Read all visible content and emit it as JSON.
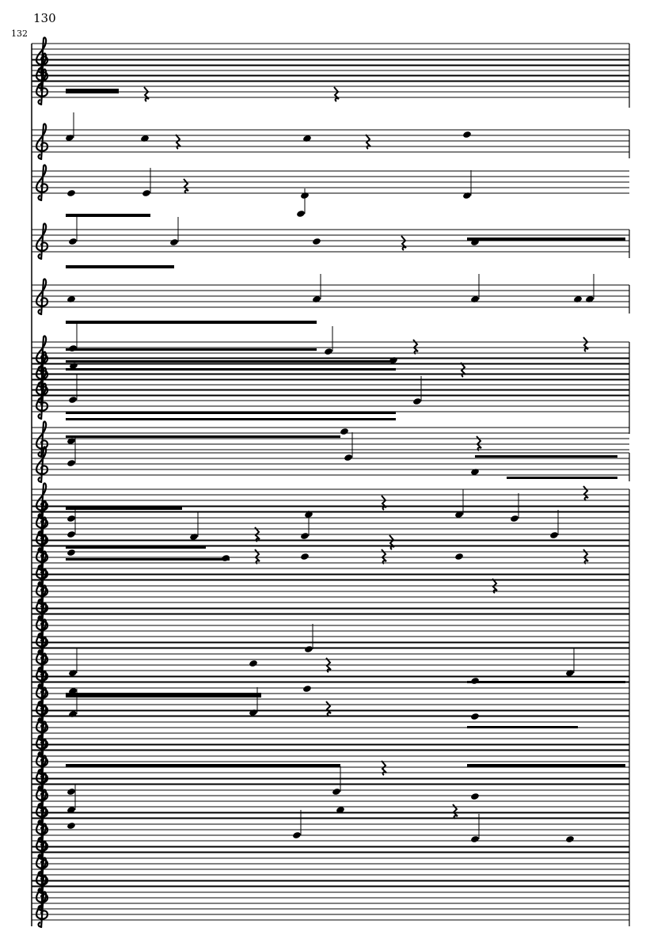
{
  "score": {
    "measure_number": "130",
    "system_number": "132"
  }
}
